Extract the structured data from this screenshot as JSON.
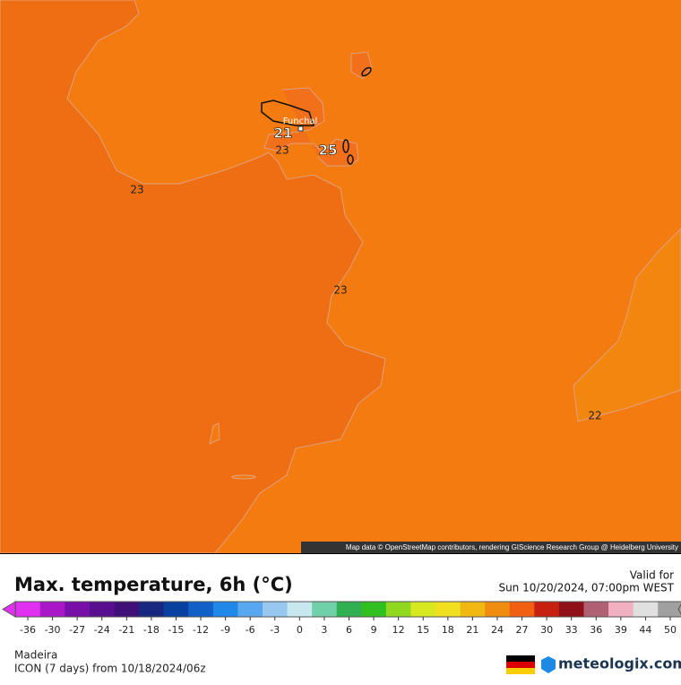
{
  "map": {
    "labels": [
      "Funchal",
      "21",
      "25",
      "23",
      "23",
      "23",
      "22"
    ],
    "attribution": "Map data © OpenStreetMap contributors, rendering GIScience Research Group @ Heidelberg University"
  },
  "header": {
    "title": "Max. temperature, 6h (°C)",
    "valid_label": "Valid for",
    "valid_time": "Sun 10/20/2024, 07:00pm WEST"
  },
  "colorbar": {
    "ticks": [
      -36,
      -30,
      -27,
      -24,
      -21,
      -18,
      -15,
      -12,
      -9,
      -6,
      -3,
      0,
      3,
      6,
      9,
      12,
      15,
      18,
      21,
      24,
      27,
      30,
      33,
      36,
      39,
      44,
      50
    ],
    "colors": [
      "#e030f0",
      "#a818c8",
      "#7810a8",
      "#581090",
      "#401078",
      "#182880",
      "#0840a0",
      "#1060c8",
      "#2088e8",
      "#58a8f0",
      "#98c8f0",
      "#c8e8f0",
      "#70d0a8",
      "#30b050",
      "#30c020",
      "#90d820",
      "#d8e820",
      "#f0e020",
      "#f0b810",
      "#f08c10",
      "#f06010",
      "#c82010",
      "#901018",
      "#b06070",
      "#f0b0c0",
      "#e0e0e0",
      "#a0a0a0"
    ]
  },
  "footer": {
    "region": "Madeira",
    "model": "ICON (7 days)  from  10/18/2024/06z",
    "brand": "meteologix.com"
  }
}
